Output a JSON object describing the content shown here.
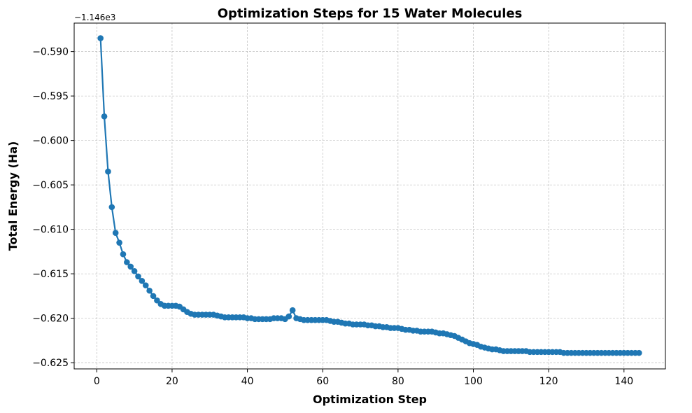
{
  "chart_data": {
    "type": "line",
    "title": "Optimization Steps for 15 Water Molecules",
    "xlabel": "Optimization Step",
    "ylabel": "Total Energy (Ha)",
    "y_offset_label": "−1.146e3",
    "y_offset": -1146,
    "xlim": [
      -6,
      151
    ],
    "ylim": [
      -0.6257,
      -0.5868
    ],
    "xticks": [
      0,
      20,
      40,
      60,
      80,
      100,
      120,
      140
    ],
    "yticks": [
      -0.59,
      -0.595,
      -0.6,
      -0.605,
      -0.61,
      -0.615,
      -0.62,
      -0.625
    ],
    "ytick_labels": [
      "−0.590",
      "−0.595",
      "−0.600",
      "−0.605",
      "−0.610",
      "−0.615",
      "−0.620",
      "−0.625"
    ],
    "grid": true,
    "marker": "circle",
    "color": "#1f77b4",
    "series": [
      {
        "x": [
          1,
          2,
          3,
          4,
          5,
          6,
          7,
          8,
          9,
          10,
          11,
          12,
          13,
          14,
          15,
          16,
          17,
          18,
          19,
          20,
          21,
          22,
          23,
          24,
          25,
          26,
          27,
          28,
          29,
          30,
          31,
          32,
          33,
          34,
          35,
          36,
          37,
          38,
          39,
          40,
          41,
          42,
          43,
          44,
          45,
          46,
          47,
          48,
          49,
          50,
          51,
          52,
          53,
          54,
          55,
          56,
          57,
          58,
          59,
          60,
          61,
          62,
          63,
          64,
          65,
          66,
          67,
          68,
          69,
          70,
          71,
          72,
          73,
          74,
          75,
          76,
          77,
          78,
          79,
          80,
          81,
          82,
          83,
          84,
          85,
          86,
          87,
          88,
          89,
          90,
          91,
          92,
          93,
          94,
          95,
          96,
          97,
          98,
          99,
          100,
          101,
          102,
          103,
          104,
          105,
          106,
          107,
          108,
          109,
          110,
          111,
          112,
          113,
          114,
          115,
          116,
          117,
          118,
          119,
          120,
          121,
          122,
          123,
          124,
          125,
          126,
          127,
          128,
          129,
          130,
          131,
          132,
          133,
          134,
          135,
          136,
          137,
          138,
          139,
          140,
          141,
          142,
          143,
          144
        ],
        "y": [
          -0.5885,
          -0.5973,
          -0.6035,
          -0.6075,
          -0.6104,
          -0.6115,
          -0.6128,
          -0.6137,
          -0.6142,
          -0.6147,
          -0.6153,
          -0.6158,
          -0.6163,
          -0.6169,
          -0.6175,
          -0.618,
          -0.6184,
          -0.6186,
          -0.6186,
          -0.6186,
          -0.6186,
          -0.6187,
          -0.619,
          -0.6193,
          -0.6195,
          -0.6196,
          -0.6196,
          -0.6196,
          -0.6196,
          -0.6196,
          -0.6196,
          -0.6197,
          -0.6198,
          -0.6199,
          -0.6199,
          -0.6199,
          -0.6199,
          -0.6199,
          -0.6199,
          -0.62,
          -0.62,
          -0.6201,
          -0.6201,
          -0.6201,
          -0.6201,
          -0.6201,
          -0.62,
          -0.62,
          -0.62,
          -0.6201,
          -0.6198,
          -0.6191,
          -0.62,
          -0.6201,
          -0.6202,
          -0.6202,
          -0.6202,
          -0.6202,
          -0.6202,
          -0.6202,
          -0.6202,
          -0.6203,
          -0.6204,
          -0.6204,
          -0.6205,
          -0.6206,
          -0.6206,
          -0.6207,
          -0.6207,
          -0.6207,
          -0.6207,
          -0.6208,
          -0.6208,
          -0.6209,
          -0.6209,
          -0.621,
          -0.621,
          -0.6211,
          -0.6211,
          -0.6211,
          -0.6212,
          -0.6213,
          -0.6213,
          -0.6214,
          -0.6214,
          -0.6215,
          -0.6215,
          -0.6215,
          -0.6215,
          -0.6216,
          -0.6217,
          -0.6217,
          -0.6218,
          -0.6219,
          -0.622,
          -0.6222,
          -0.6224,
          -0.6226,
          -0.6228,
          -0.6229,
          -0.623,
          -0.6232,
          -0.6233,
          -0.6234,
          -0.6235,
          -0.6235,
          -0.6236,
          -0.6237,
          -0.6237,
          -0.6237,
          -0.6237,
          -0.6237,
          -0.6237,
          -0.6237,
          -0.6238,
          -0.6238,
          -0.6238,
          -0.6238,
          -0.6238,
          -0.6238,
          -0.6238,
          -0.6238,
          -0.6238,
          -0.6239,
          -0.6239,
          -0.6239,
          -0.6239,
          -0.6239,
          -0.6239,
          -0.6239,
          -0.6239,
          -0.6239,
          -0.6239,
          -0.6239,
          -0.6239,
          -0.6239,
          -0.6239,
          -0.6239,
          -0.6239,
          -0.6239,
          -0.6239,
          -0.6239,
          -0.6239,
          -0.6239
        ]
      }
    ]
  }
}
